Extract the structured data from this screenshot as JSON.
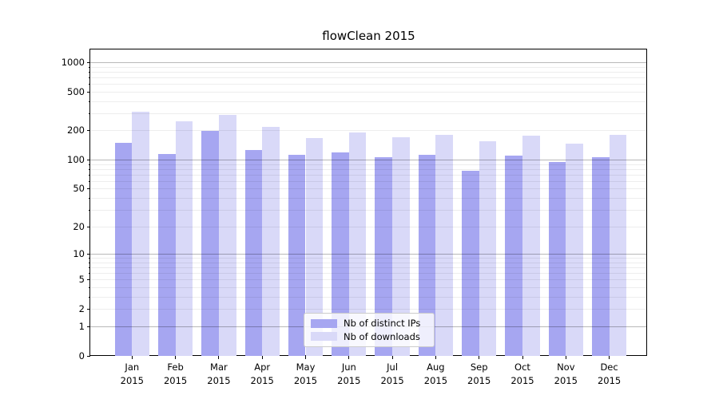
{
  "chart_data": {
    "type": "bar",
    "title": "flowClean 2015",
    "categories": [
      "Jan 2015",
      "Feb 2015",
      "Mar 2015",
      "Apr 2015",
      "May 2015",
      "Jun 2015",
      "Jul 2015",
      "Aug 2015",
      "Sep 2015",
      "Oct 2015",
      "Nov 2015",
      "Dec 2015"
    ],
    "series": [
      {
        "name": "Nb of distinct IPs",
        "color": "#a6a6f1",
        "values": [
          151,
          116,
          200,
          127,
          114,
          119,
          107,
          113,
          77,
          112,
          96,
          107
        ]
      },
      {
        "name": "Nb of downloads",
        "color": "#d9d9f8",
        "values": [
          313,
          252,
          290,
          220,
          169,
          192,
          170,
          180,
          157,
          177,
          147,
          181
        ]
      }
    ],
    "xlabel": "",
    "ylabel": "",
    "yaxis": {
      "scale": "symlog",
      "tick_labels": [
        "1000",
        "500",
        "200",
        "100",
        "50",
        "20",
        "10",
        "5",
        "2",
        "1",
        "0"
      ],
      "major_gridlines": [
        1,
        10,
        100,
        1000
      ],
      "ylim": [
        0,
        1360
      ]
    },
    "grid": true,
    "legend": {
      "position": "lower-center",
      "entries": [
        "Nb of distinct IPs",
        "Nb of downloads"
      ]
    }
  },
  "colors": {
    "series_ips": "#a6a6f1",
    "series_downloads": "#d9d9f8",
    "major_grid": "#b4b4b4",
    "minor_grid": "#ececec",
    "axis": "#000000",
    "legend_border": "#cccccc"
  }
}
